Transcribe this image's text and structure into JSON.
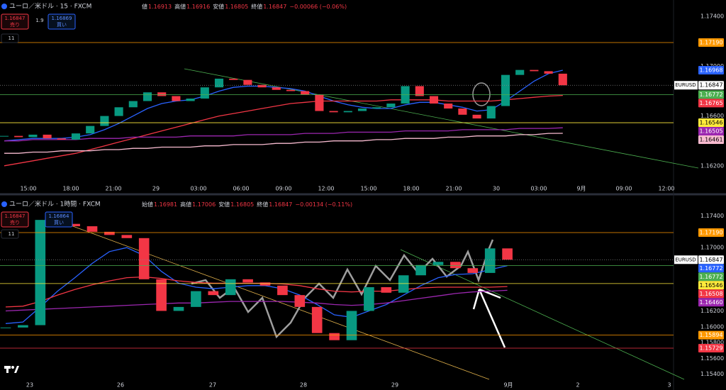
{
  "chart_data": [
    {
      "type": "candlestick",
      "title": "ユーロ／米ドル · 15 · FXCM",
      "ohlc": [
        {
          "label": "値",
          "value": "1.16913"
        },
        {
          "label": "高値",
          "value": "1.16916"
        },
        {
          "label": "安値",
          "value": "1.16805"
        },
        {
          "label": "終値",
          "value": "1.16847"
        }
      ],
      "change": "−0.00066 (−0.06%)",
      "sell": {
        "price": "1.16847",
        "label": "売り"
      },
      "spread": "1.9",
      "buy": {
        "price": "1.16869",
        "label": "買い"
      },
      "indicators": "11",
      "x_labels": [
        "15:00",
        "18:00",
        "21:00",
        "29",
        "03:00",
        "06:00",
        "09:00",
        "12:00",
        "15:00",
        "18:00",
        "21:00",
        "30",
        "03:00",
        "9月",
        "09:00",
        "12:00"
      ],
      "ylim": [
        1.16062,
        1.17532
      ],
      "yticks": [
        {
          "value": 1.174,
          "label": "1.17400"
        },
        {
          "value": 1.17,
          "label": "1.17000"
        },
        {
          "value": 1.166,
          "label": "1.16600"
        },
        {
          "value": 1.162,
          "label": "1.16200"
        }
      ],
      "grid": false,
      "up_color": "#089981",
      "down_color": "#f23645",
      "values": [
        1.1644,
        1.1643,
        1.1645,
        1.1642,
        1.1641,
        1.1646,
        1.1652,
        1.166,
        1.1667,
        1.1672,
        1.1679,
        1.1676,
        1.1672,
        1.1674,
        1.1683,
        1.169,
        1.1689,
        1.1685,
        1.1683,
        1.1681,
        1.168,
        1.1677,
        1.1664,
        1.1663,
        1.1664,
        1.1666,
        1.1667,
        1.167,
        1.1684,
        1.1676,
        1.167,
        1.1666,
        1.1661,
        1.1658,
        1.1668,
        1.1693,
        1.1697,
        1.1696,
        1.1694,
        1.16847
      ],
      "series": [
        {
          "color": "#2962ff",
          "values": [
            1.164,
            1.1641,
            1.1642,
            1.1642,
            1.1642,
            1.1643,
            1.1645,
            1.1649,
            1.1654,
            1.166,
            1.1666,
            1.167,
            1.1672,
            1.1673,
            1.1676,
            1.168,
            1.1683,
            1.1684,
            1.1684,
            1.1683,
            1.1682,
            1.168,
            1.1676,
            1.1672,
            1.1669,
            1.1667,
            1.1666,
            1.1666,
            1.1669,
            1.1671,
            1.1671,
            1.1669,
            1.1667,
            1.1664,
            1.1665,
            1.1672,
            1.168,
            1.1688,
            1.1694,
            1.16968
          ]
        },
        {
          "color": "#f23645",
          "values": [
            1.162,
            1.1622,
            1.1624,
            1.1626,
            1.1628,
            1.163,
            1.1633,
            1.1636,
            1.1639,
            1.1642,
            1.1645,
            1.1648,
            1.1651,
            1.1654,
            1.1657,
            1.166,
            1.1662,
            1.1664,
            1.1666,
            1.1668,
            1.167,
            1.1671,
            1.1672,
            1.1672,
            1.1672,
            1.1672,
            1.1672,
            1.1673,
            1.1673,
            1.1673,
            1.1673,
            1.1672,
            1.1672,
            1.1672,
            1.1672,
            1.1673,
            1.1674,
            1.1675,
            1.1676,
            1.16765
          ]
        },
        {
          "color": "#9c27b0",
          "values": [
            1.164,
            1.164,
            1.1641,
            1.1641,
            1.1641,
            1.1641,
            1.1642,
            1.1642,
            1.1642,
            1.1643,
            1.1643,
            1.1643,
            1.1643,
            1.1644,
            1.1644,
            1.1644,
            1.1644,
            1.1645,
            1.1645,
            1.1645,
            1.1645,
            1.1646,
            1.1646,
            1.1646,
            1.1647,
            1.1647,
            1.1647,
            1.1647,
            1.1648,
            1.1648,
            1.1648,
            1.1648,
            1.1649,
            1.1649,
            1.1649,
            1.1649,
            1.165,
            1.165,
            1.165,
            1.16505
          ]
        },
        {
          "color": "#f8bbd0",
          "values": [
            1.163,
            1.163,
            1.1631,
            1.1631,
            1.1632,
            1.1632,
            1.1632,
            1.1633,
            1.1633,
            1.1634,
            1.1634,
            1.1635,
            1.1635,
            1.1635,
            1.1636,
            1.1636,
            1.1637,
            1.1637,
            1.1637,
            1.1638,
            1.1638,
            1.1639,
            1.1639,
            1.164,
            1.164,
            1.164,
            1.1641,
            1.1641,
            1.1642,
            1.1642,
            1.1642,
            1.1643,
            1.1643,
            1.1644,
            1.1644,
            1.1644,
            1.1645,
            1.1645,
            1.1646,
            1.16461
          ]
        }
      ],
      "price_tags": [
        {
          "value": 1.1719,
          "label": "1.17190",
          "color": "#ff9800",
          "line": true
        },
        {
          "value": 1.16968,
          "label": "1.16968",
          "color": "#2962ff"
        },
        {
          "value": 1.16847,
          "label": "1.16847",
          "name": "EURUSD",
          "color": "#ffffff",
          "line": "dotted"
        },
        {
          "value": 1.16772,
          "label": "1.16772",
          "color": "#4caf50",
          "line": true
        },
        {
          "value": 1.16765,
          "label": "1.16765",
          "color": "#f23645"
        },
        {
          "value": 1.16546,
          "label": "1.16546",
          "color": "#ffeb3b",
          "line": true
        },
        {
          "value": 1.16505,
          "label": "1.16505",
          "color": "#9c27b0"
        },
        {
          "value": 1.16461,
          "label": "1.16461",
          "color": "#f8bbd0"
        }
      ]
    },
    {
      "type": "candlestick",
      "title": "ユーロ／米ドル · 1時間 · FXCM",
      "ohlc": [
        {
          "label": "始値",
          "value": "1.16981"
        },
        {
          "label": "高値",
          "value": "1.17006"
        },
        {
          "label": "安値",
          "value": "1.16805"
        },
        {
          "label": "終値",
          "value": "1.16847"
        }
      ],
      "change": "−0.00134 (−0.11%)",
      "sell": {
        "price": "1.16847",
        "label": "売り"
      },
      "buy": {
        "price": "1.16864",
        "label": "買い"
      },
      "indicators": "11",
      "x_labels": [
        "23",
        "26",
        "27",
        "28",
        "29",
        "9月",
        "2",
        "3"
      ],
      "ylim": [
        1.1529,
        1.17638
      ],
      "yticks": [
        {
          "value": 1.174,
          "label": "1.17400"
        },
        {
          "value": 1.17,
          "label": "1.17000"
        },
        {
          "value": 1.162,
          "label": "1.16200"
        },
        {
          "value": 1.16,
          "label": "1.16000"
        },
        {
          "value": 1.158,
          "label": "1.15800"
        },
        {
          "value": 1.156,
          "label": "1.15600"
        },
        {
          "value": 1.154,
          "label": "1.15400"
        }
      ],
      "grid": false,
      "up_color": "#089981",
      "down_color": "#f23645",
      "values": [
        1.1599,
        1.1602,
        1.1735,
        1.173,
        1.1727,
        1.172,
        1.1716,
        1.1712,
        1.166,
        1.162,
        1.1625,
        1.1645,
        1.164,
        1.166,
        1.1656,
        1.1652,
        1.164,
        1.1625,
        1.1592,
        1.1583,
        1.162,
        1.165,
        1.1643,
        1.1665,
        1.1678,
        1.1682,
        1.1674,
        1.1668,
        1.1699,
        1.16847
      ],
      "series": [
        {
          "color": "#2962ff",
          "values": [
            1.1604,
            1.1606,
            1.1625,
            1.1645,
            1.1662,
            1.168,
            1.1695,
            1.17,
            1.169,
            1.167,
            1.1655,
            1.165,
            1.1648,
            1.165,
            1.1652,
            1.1652,
            1.1648,
            1.164,
            1.1628,
            1.1615,
            1.1612,
            1.162,
            1.1628,
            1.164,
            1.1652,
            1.1662,
            1.1666,
            1.1667,
            1.1672,
            1.16772
          ]
        },
        {
          "color": "#f23645",
          "values": [
            1.1625,
            1.1626,
            1.1632,
            1.164,
            1.1647,
            1.1653,
            1.1658,
            1.1662,
            1.1663,
            1.1661,
            1.1658,
            1.1656,
            1.1655,
            1.1655,
            1.1655,
            1.1655,
            1.1654,
            1.1652,
            1.1648,
            1.1645,
            1.1644,
            1.1645,
            1.1645,
            1.1647,
            1.1649,
            1.165,
            1.165,
            1.165,
            1.165,
            1.16508
          ]
        },
        {
          "color": "#9c27b0",
          "values": [
            1.162,
            1.1621,
            1.1622,
            1.1623,
            1.1624,
            1.1625,
            1.1626,
            1.1627,
            1.1628,
            1.1629,
            1.163,
            1.163,
            1.1631,
            1.1632,
            1.1632,
            1.1632,
            1.1632,
            1.1631,
            1.163,
            1.1628,
            1.1627,
            1.1628,
            1.163,
            1.1633,
            1.1636,
            1.1639,
            1.1642,
            1.1644,
            1.1645,
            1.1646
          ]
        }
      ],
      "price_tags": [
        {
          "value": 1.1719,
          "label": "1.17190",
          "color": "#ff9800",
          "line": true
        },
        {
          "value": 1.16847,
          "label": "1.16847",
          "name": "EURUSD",
          "color": "#ffffff",
          "line": "dotted"
        },
        {
          "value": 1.16772,
          "label": "1.16772",
          "color": "#2962ff"
        },
        {
          "value": 1.16772,
          "label": "1.16772",
          "color": "#4caf50",
          "line": true
        },
        {
          "value": 1.16546,
          "label": "1.16546",
          "color": "#ffeb3b",
          "line": true
        },
        {
          "value": 1.16508,
          "label": "1.16508",
          "color": "#f23645"
        },
        {
          "value": 1.1646,
          "label": "1.16460",
          "color": "#9c27b0"
        },
        {
          "value": 1.15894,
          "label": "1.15894",
          "color": "#ff9800",
          "line": true
        },
        {
          "value": 1.15729,
          "label": "1.15729",
          "color": "#f23645",
          "line": true
        }
      ]
    }
  ]
}
